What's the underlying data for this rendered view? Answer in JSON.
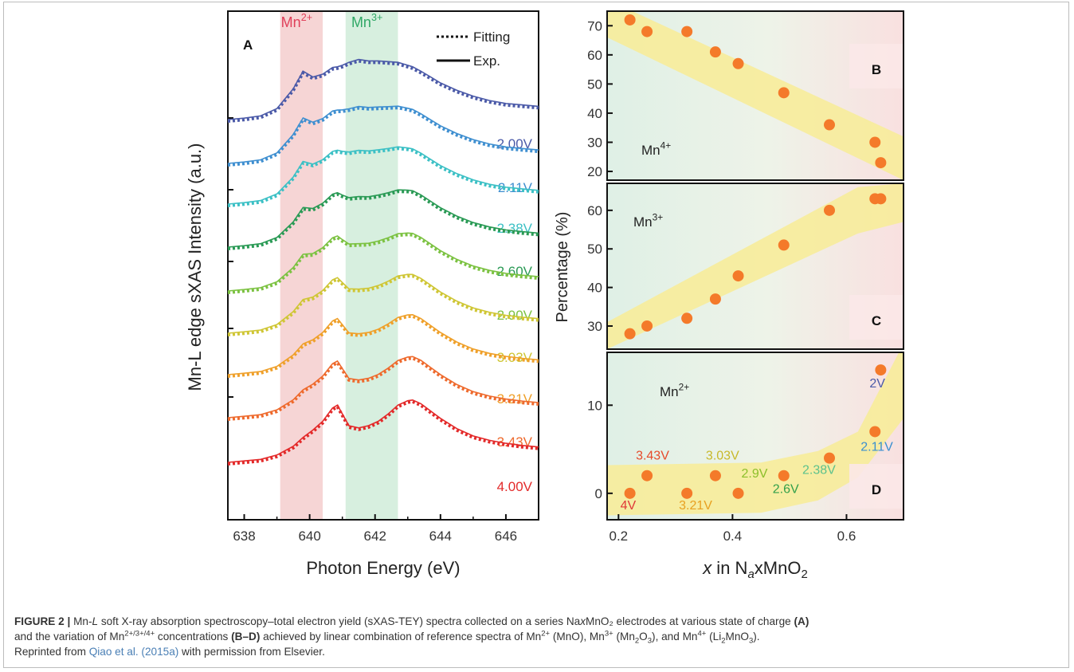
{
  "caption": {
    "label": "FIGURE 2 |",
    "t1a": "Mn-",
    "t1b": "L",
    "t1c": " soft X-ray absorption spectroscopy–total electron yield (sXAS-TEY) spectra collected on a series Na",
    "t1d": "x",
    "t1e": "MnO₂ electrodes at various state of charge ",
    "t1f": "(A)",
    "t2a": "and the variation of Mn",
    "t2b": "2+/3+/4+",
    "t2c": " concentrations ",
    "t2d": "(B–D)",
    "t2e": " achieved by linear combination of reference spectra of Mn",
    "t2f": "2+",
    "t2g": " (MnO), Mn",
    "t2h": "3+",
    "t2i": " (Mn",
    "t2j": "2",
    "t2k": "O",
    "t2l": "3",
    "t2m": "), and Mn",
    "t2n": "4+",
    "t2o": " (Li",
    "t2p": "2",
    "t2q": "MnO",
    "t2r": "3",
    "t2s": ").",
    "t3a": "Reprinted from ",
    "t3b": "Qiao et al. (2015a)",
    "t3c": " with permission from Elsevier."
  },
  "chart_data": [
    {
      "panel": "A",
      "type": "line",
      "xlabel": "Photon Energy (eV)",
      "ylabel": "Mn-L edge sXAS Intensity (a.u.)",
      "xlim": [
        637.5,
        647
      ],
      "xticks": [
        638,
        640,
        642,
        644,
        646
      ],
      "bands": [
        {
          "label": "Mn",
          "sup": "2+",
          "range": [
            639.1,
            640.4
          ],
          "color": "#f6d5d5",
          "label_color": "#e0405a"
        },
        {
          "label": "Mn",
          "sup": "3+",
          "range": [
            641.1,
            642.7
          ],
          "color": "#d7efdf",
          "label_color": "#2fa866"
        }
      ],
      "legend": [
        {
          "label": "Fitting",
          "style": "dotted"
        },
        {
          "label": "Exp.",
          "style": "solid"
        }
      ],
      "series": [
        {
          "name": "2.00V",
          "color": "#4b5aa8"
        },
        {
          "name": "2.11V",
          "color": "#3f8fd0"
        },
        {
          "name": "2.38V",
          "color": "#3cc0c5"
        },
        {
          "name": "2.60V",
          "color": "#2a9a55"
        },
        {
          "name": "2.90V",
          "color": "#7cc242"
        },
        {
          "name": "3.03V",
          "color": "#cfc635"
        },
        {
          "name": "3.21V",
          "color": "#efa02a"
        },
        {
          "name": "3.43V",
          "color": "#ee6a2d"
        },
        {
          "name": "4.00V",
          "color": "#e32a2a"
        }
      ],
      "energy_grid": [
        637.5,
        638,
        638.5,
        639,
        639.5,
        639.8,
        640.1,
        640.4,
        640.7,
        640.85,
        641.0,
        641.2,
        641.5,
        641.8,
        642.1,
        642.4,
        642.7,
        643.0,
        643.15,
        643.4,
        643.7,
        644,
        644.5,
        645,
        645.5,
        646,
        646.5,
        647
      ],
      "shape_low_potential": [
        0.0,
        0.02,
        0.05,
        0.15,
        0.42,
        0.66,
        0.58,
        0.62,
        0.71,
        0.72,
        0.74,
        0.78,
        0.82,
        0.8,
        0.8,
        0.79,
        0.78,
        0.74,
        0.72,
        0.66,
        0.58,
        0.5,
        0.4,
        0.32,
        0.26,
        0.22,
        0.2,
        0.18
      ],
      "shape_high_potential": [
        0.0,
        0.02,
        0.04,
        0.1,
        0.22,
        0.34,
        0.44,
        0.56,
        0.74,
        0.78,
        0.66,
        0.5,
        0.47,
        0.5,
        0.56,
        0.66,
        0.78,
        0.84,
        0.85,
        0.8,
        0.7,
        0.6,
        0.46,
        0.36,
        0.3,
        0.26,
        0.23,
        0.21
      ]
    },
    {
      "panel": "B",
      "type": "scatter",
      "annotation": "Mn4+",
      "xlim": [
        0.18,
        0.7
      ],
      "ylim": [
        17,
        75
      ],
      "yticks": [
        20,
        30,
        40,
        50,
        60,
        70
      ],
      "x": [
        0.22,
        0.25,
        0.32,
        0.37,
        0.41,
        0.49,
        0.57,
        0.65,
        0.66
      ],
      "y": [
        72,
        68,
        68,
        61,
        57,
        47,
        36,
        30,
        23
      ],
      "band": {
        "x": [
          0.18,
          0.7
        ],
        "y_upper": [
          79,
          32
        ],
        "y_lower": [
          66,
          17
        ]
      },
      "marker_color": "#f47a2a"
    },
    {
      "panel": "C",
      "type": "scatter",
      "annotation": "Mn3+",
      "xlim": [
        0.18,
        0.7
      ],
      "ylim": [
        24,
        67
      ],
      "yticks": [
        30,
        40,
        50,
        60
      ],
      "ylabel": "Percentage (%)",
      "x": [
        0.22,
        0.25,
        0.32,
        0.37,
        0.41,
        0.49,
        0.57,
        0.65,
        0.66
      ],
      "y": [
        28,
        30,
        32,
        37,
        43,
        51,
        60,
        63,
        63
      ],
      "band": {
        "x": [
          0.18,
          0.62,
          0.7
        ],
        "y_upper": [
          31,
          66,
          67
        ],
        "y_lower": [
          24,
          54,
          57
        ]
      },
      "marker_color": "#f47a2a"
    },
    {
      "panel": "D",
      "type": "scatter",
      "annotation": "Mn2+",
      "xlim": [
        0.18,
        0.7
      ],
      "ylim": [
        -3,
        16
      ],
      "yticks": [
        0,
        10
      ],
      "xticks": [
        0.2,
        0.4,
        0.6
      ],
      "xlabel": "x in NaxMnO2",
      "x": [
        0.22,
        0.25,
        0.32,
        0.37,
        0.41,
        0.49,
        0.57,
        0.65,
        0.66
      ],
      "y": [
        0,
        2,
        0,
        2,
        0,
        2,
        4,
        7,
        14
      ],
      "point_labels": [
        {
          "text": "4V",
          "color": "#e03838"
        },
        {
          "text": "3.43V",
          "color": "#e64a2a"
        },
        {
          "text": "3.21V",
          "color": "#e8a020"
        },
        {
          "text": "3.03V",
          "color": "#c8b82a"
        },
        {
          "text": "2.9V",
          "color": "#8cbf2a"
        },
        {
          "text": "2.6V",
          "color": "#33a04a"
        },
        {
          "text": "2.38V",
          "color": "#5dc28c"
        },
        {
          "text": "2.11V",
          "color": "#3a8fd0"
        },
        {
          "text": "2V",
          "color": "#4b5aa8"
        }
      ],
      "band": {
        "x": [
          0.18,
          0.45,
          0.55,
          0.62,
          0.7
        ],
        "y_upper": [
          3.2,
          3.5,
          4.8,
          7,
          17
        ],
        "y_lower": [
          -2.5,
          -2.2,
          -0.8,
          1.8,
          8.5
        ]
      },
      "marker_color": "#f47a2a"
    }
  ],
  "panel_letters": {
    "A": "A",
    "B": "B",
    "C": "C",
    "D": "D"
  }
}
